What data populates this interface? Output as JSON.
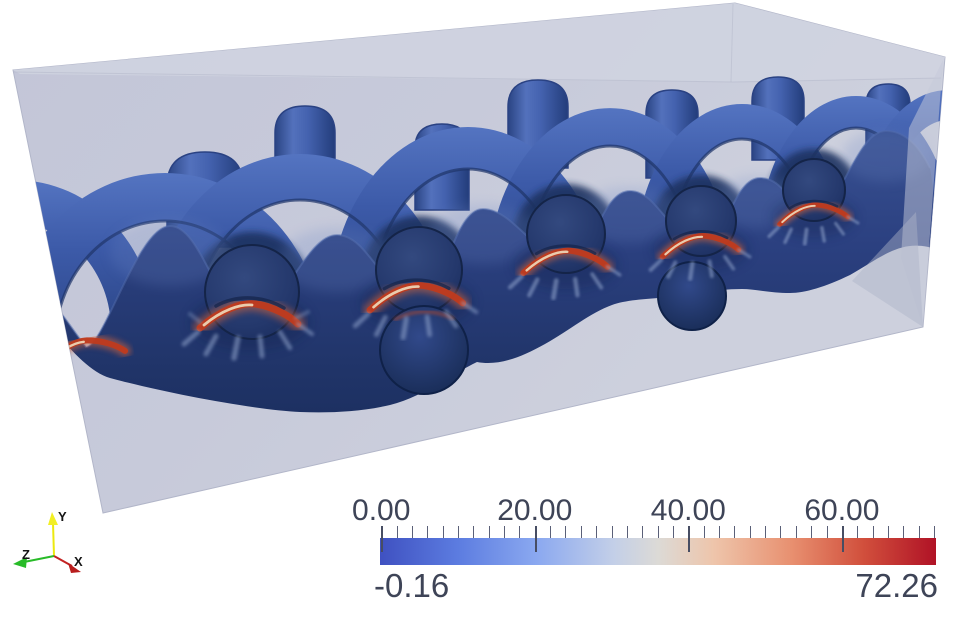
{
  "viewport": {
    "background": "#ffffff",
    "description_colors": {
      "matrix_box": "#c6c9da",
      "matrix_box_top": "#d0d3e0",
      "yarn_blue": "#3c5aa8",
      "yarn_blue_light": "#5474c1",
      "yarn_blue_dark": "#1d3161",
      "front_yarn_top": "#3a5394",
      "front_yarn_bottom": "#172a58",
      "hotspot_red": "#bf3a1e",
      "hotspot_glow": "#d4643a",
      "hotspot_core": "#eedcbd"
    }
  },
  "orientation_axes": {
    "x": {
      "label": "X",
      "color": "#b81d1d"
    },
    "y": {
      "label": "Y",
      "color": "#ece90f"
    },
    "z": {
      "label": "Z",
      "color": "#28bb28"
    },
    "label_color": "#141414"
  },
  "chart_data": {
    "type": "heatmap",
    "title": "",
    "subtitle": "",
    "field_range": {
      "min": -0.16,
      "max": 72.26
    },
    "colorbar": {
      "orientation": "horizontal",
      "min": -0.16,
      "max": 72.26,
      "min_label": "-0.16",
      "max_label": "72.26",
      "major_ticks": [
        0,
        20,
        40,
        60
      ],
      "major_tick_labels": [
        "0.00",
        "20.00",
        "40.00",
        "60.00"
      ],
      "minor_tick_step": 2,
      "colormap": "cool-to-warm diverging (blue-white-red)",
      "text_color": "#3e4457",
      "gradient_stops": [
        {
          "pos": 0.0,
          "color": "#3f51c1"
        },
        {
          "pos": 0.14,
          "color": "#5c7ce0"
        },
        {
          "pos": 0.28,
          "color": "#8aa8f0"
        },
        {
          "pos": 0.42,
          "color": "#c3cfe8"
        },
        {
          "pos": 0.5,
          "color": "#dcdad6"
        },
        {
          "pos": 0.6,
          "color": "#eec5ab"
        },
        {
          "pos": 0.74,
          "color": "#e89070"
        },
        {
          "pos": 0.87,
          "color": "#d14f3c"
        },
        {
          "pos": 1.0,
          "color": "#b01226"
        }
      ]
    }
  }
}
